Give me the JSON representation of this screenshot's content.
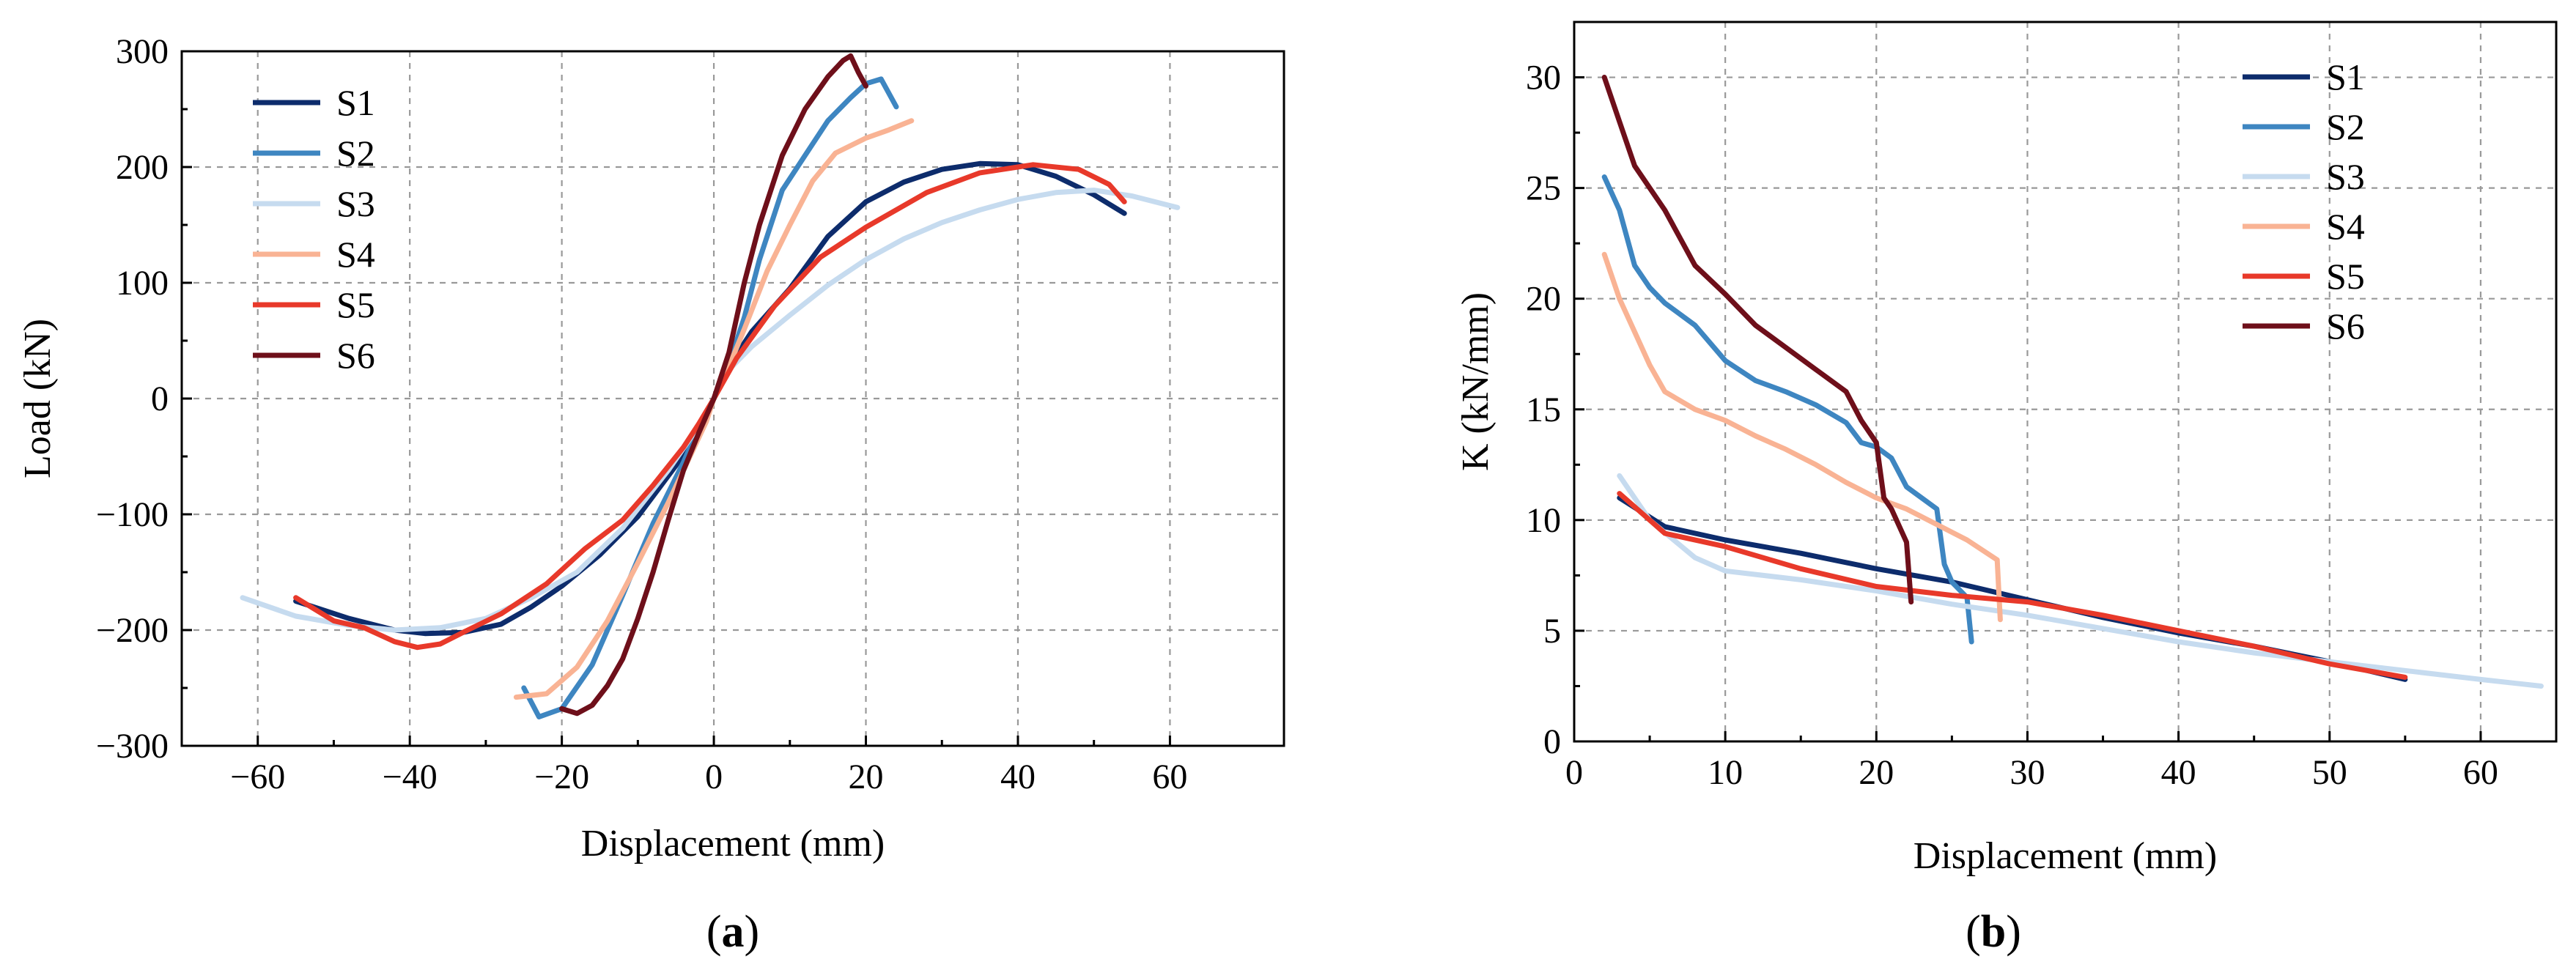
{
  "chart_data": [
    {
      "type": "line",
      "panel_label": "a",
      "xlabel": "Displacement (mm)",
      "ylabel": "Load (kN)",
      "xlim": [
        -70,
        75
      ],
      "ylim": [
        -300,
        300
      ],
      "xticks": [
        -60,
        -40,
        -20,
        0,
        20,
        40,
        60
      ],
      "yticks": [
        -300,
        -200,
        -100,
        0,
        100,
        200,
        300
      ],
      "xtick_labels": [
        "−60",
        "−40",
        "−20",
        "0",
        "20",
        "40",
        "60"
      ],
      "ytick_labels": [
        "−300",
        "−200",
        "−100",
        "0",
        "100",
        "200",
        "300"
      ],
      "grid": true,
      "legend_position": "top-left",
      "series": [
        {
          "name": "S1",
          "color": "#0d2c6c",
          "x": [
            -55,
            -48,
            -42,
            -38,
            -33,
            -28,
            -24,
            -20,
            -15,
            -10,
            -5,
            -2,
            0,
            2,
            5,
            10,
            15,
            20,
            25,
            30,
            35,
            40,
            45,
            50,
            54
          ],
          "y": [
            -175,
            -190,
            -200,
            -203,
            -202,
            -195,
            -180,
            -162,
            -135,
            -102,
            -58,
            -28,
            0,
            28,
            58,
            95,
            140,
            170,
            187,
            198,
            203,
            202,
            192,
            176,
            160
          ]
        },
        {
          "name": "S2",
          "color": "#3e86c1",
          "x": [
            -25,
            -23,
            -20,
            -16,
            -12,
            -8,
            -4,
            -2,
            0,
            2,
            4,
            6,
            9,
            12,
            15,
            18,
            20,
            22,
            24
          ],
          "y": [
            -250,
            -275,
            -268,
            -230,
            -170,
            -108,
            -55,
            -25,
            0,
            30,
            70,
            120,
            180,
            210,
            240,
            260,
            272,
            276,
            252
          ]
        },
        {
          "name": "S3",
          "color": "#c6dbef",
          "x": [
            -62,
            -55,
            -48,
            -42,
            -36,
            -30,
            -24,
            -18,
            -12,
            -6,
            -2,
            0,
            2,
            5,
            10,
            15,
            20,
            25,
            30,
            35,
            40,
            45,
            50,
            55,
            61
          ],
          "y": [
            -172,
            -188,
            -196,
            -200,
            -198,
            -190,
            -172,
            -150,
            -112,
            -62,
            -24,
            0,
            25,
            45,
            72,
            98,
            120,
            138,
            152,
            163,
            172,
            178,
            180,
            175,
            165
          ]
        },
        {
          "name": "S4",
          "color": "#f9b394",
          "x": [
            -26,
            -22,
            -18,
            -14,
            -10,
            -6,
            -3,
            -1,
            0,
            2,
            4,
            7,
            10,
            13,
            16,
            20,
            23,
            26
          ],
          "y": [
            -258,
            -255,
            -232,
            -192,
            -142,
            -90,
            -48,
            -20,
            0,
            28,
            60,
            110,
            150,
            188,
            212,
            225,
            232,
            240
          ]
        },
        {
          "name": "S5",
          "color": "#e8392a",
          "x": [
            -55,
            -50,
            -46,
            -42,
            -39,
            -36,
            -33,
            -28,
            -22,
            -17,
            -12,
            -8,
            -4,
            -2,
            0,
            3,
            8,
            14,
            20,
            28,
            35,
            42,
            48,
            52,
            54
          ],
          "y": [
            -172,
            -192,
            -198,
            -210,
            -215,
            -212,
            -202,
            -186,
            -160,
            -130,
            -105,
            -75,
            -42,
            -22,
            0,
            35,
            80,
            122,
            148,
            178,
            195,
            202,
            198,
            185,
            170
          ]
        },
        {
          "name": "S6",
          "color": "#6e0f1a",
          "x": [
            -20,
            -18,
            -16,
            -14,
            -12,
            -10,
            -8,
            -6,
            -4,
            -2,
            0,
            2,
            4,
            6,
            9,
            12,
            15,
            17,
            18,
            19,
            20
          ],
          "y": [
            -268,
            -272,
            -265,
            -248,
            -225,
            -190,
            -150,
            -105,
            -62,
            -30,
            0,
            40,
            100,
            150,
            210,
            250,
            278,
            292,
            296,
            282,
            270
          ]
        }
      ]
    },
    {
      "type": "line",
      "panel_label": "b",
      "xlabel": "Displacement (mm)",
      "ylabel": "K (kN/mm)",
      "xlim": [
        0,
        65
      ],
      "ylim": [
        0,
        32.5
      ],
      "xticks": [
        0,
        10,
        20,
        30,
        40,
        50,
        60
      ],
      "yticks": [
        0,
        5,
        10,
        15,
        20,
        25,
        30
      ],
      "xtick_labels": [
        "0",
        "10",
        "20",
        "30",
        "40",
        "50",
        "60"
      ],
      "ytick_labels": [
        "0",
        "5",
        "10",
        "15",
        "20",
        "25",
        "30"
      ],
      "grid": true,
      "legend_position": "top-right",
      "series": [
        {
          "name": "S1",
          "color": "#0d2c6c",
          "x": [
            3,
            6,
            10,
            15,
            20,
            25,
            30,
            35,
            40,
            45,
            50,
            55
          ],
          "y": [
            11.0,
            9.7,
            9.1,
            8.5,
            7.8,
            7.2,
            6.4,
            5.6,
            4.9,
            4.3,
            3.6,
            2.8
          ]
        },
        {
          "name": "S2",
          "color": "#3e86c1",
          "x": [
            2,
            3,
            4,
            5,
            6,
            8,
            10,
            12,
            14,
            16,
            18,
            19,
            20,
            21,
            22,
            24,
            24.5,
            25,
            26,
            26.3
          ],
          "y": [
            25.5,
            24.0,
            21.5,
            20.5,
            19.8,
            18.8,
            17.2,
            16.3,
            15.8,
            15.2,
            14.4,
            13.5,
            13.3,
            12.8,
            11.5,
            10.5,
            8.0,
            7.2,
            6.5,
            4.5
          ]
        },
        {
          "name": "S3",
          "color": "#c6dbef",
          "x": [
            3,
            5,
            8,
            10,
            15,
            20,
            25,
            30,
            35,
            40,
            45,
            50,
            55,
            60,
            64
          ],
          "y": [
            12.0,
            10.0,
            8.3,
            7.7,
            7.3,
            6.8,
            6.2,
            5.7,
            5.1,
            4.5,
            4.0,
            3.6,
            3.2,
            2.8,
            2.5
          ]
        },
        {
          "name": "S4",
          "color": "#f9b394",
          "x": [
            2,
            3,
            4,
            5,
            6,
            8,
            10,
            12,
            14,
            16,
            18,
            20,
            22,
            24,
            26,
            28,
            28.2
          ],
          "y": [
            22.0,
            20.0,
            18.5,
            17.0,
            15.8,
            15.0,
            14.5,
            13.8,
            13.2,
            12.5,
            11.7,
            11.0,
            10.5,
            9.8,
            9.1,
            8.2,
            5.5
          ]
        },
        {
          "name": "S5",
          "color": "#e8392a",
          "x": [
            3,
            6,
            10,
            15,
            20,
            25,
            30,
            35,
            40,
            45,
            50,
            55
          ],
          "y": [
            11.2,
            9.4,
            8.8,
            7.8,
            7.0,
            6.6,
            6.3,
            5.7,
            5.0,
            4.3,
            3.5,
            2.9
          ]
        },
        {
          "name": "S6",
          "color": "#6e0f1a",
          "x": [
            2,
            3,
            4,
            5,
            6,
            8,
            10,
            12,
            14,
            16,
            18,
            19,
            20,
            20.5,
            21,
            22,
            22.3
          ],
          "y": [
            30.0,
            28.0,
            26.0,
            25.0,
            24.0,
            21.5,
            20.2,
            18.8,
            17.8,
            16.8,
            15.8,
            14.5,
            13.5,
            11.0,
            10.5,
            9.0,
            6.3
          ]
        }
      ]
    }
  ]
}
